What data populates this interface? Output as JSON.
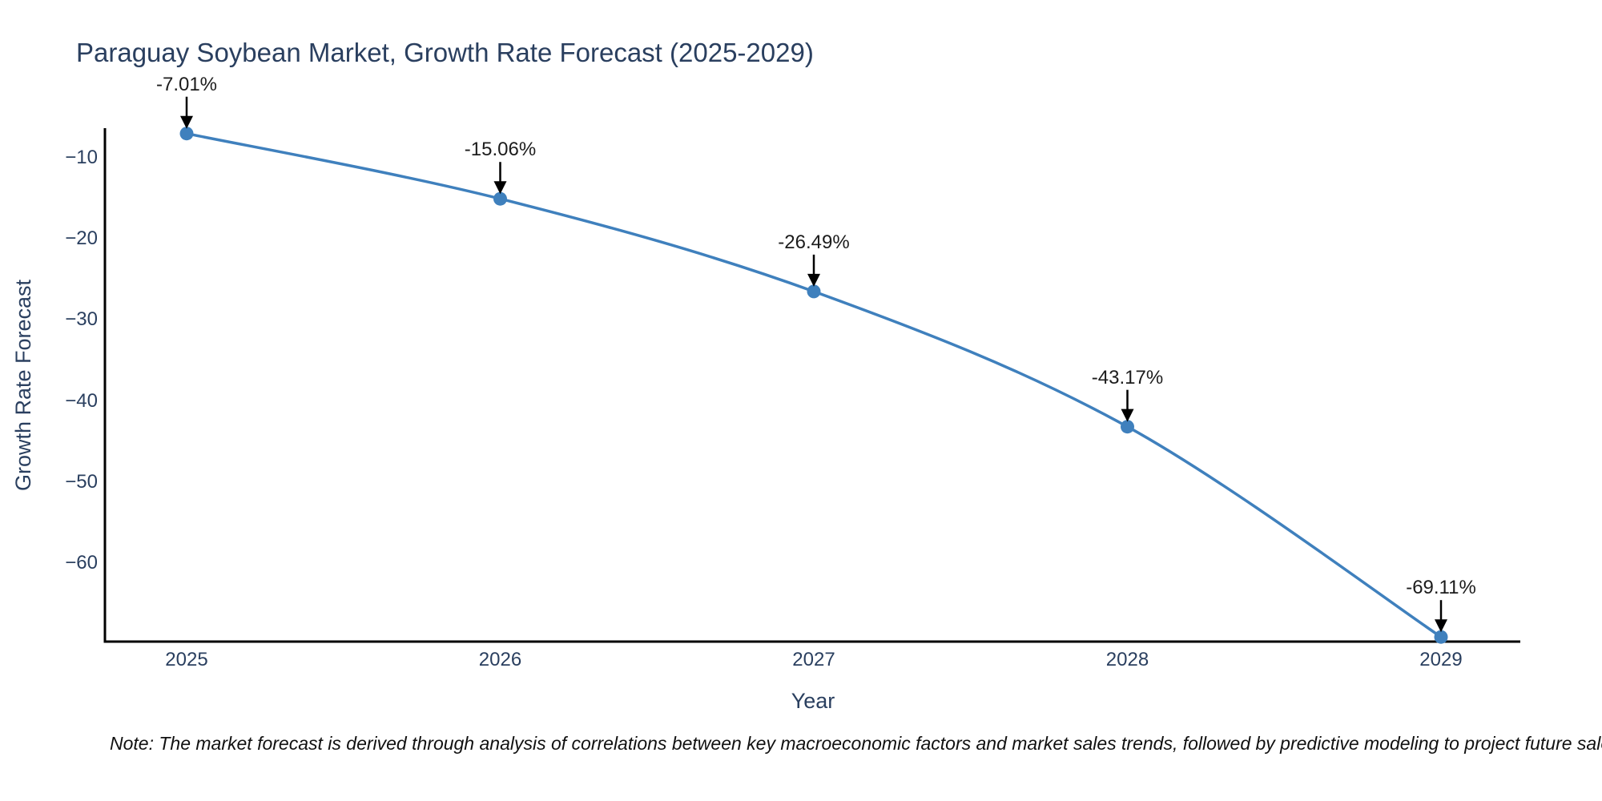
{
  "chart_data": {
    "type": "line",
    "title": "Paraguay Soybean Market, Growth Rate Forecast (2025-2029)",
    "xlabel": "Year",
    "ylabel": "Growth Rate Forecast",
    "categories": [
      2025,
      2026,
      2027,
      2028,
      2029
    ],
    "series": [
      {
        "name": "Growth Rate Forecast",
        "values": [
          -7.01,
          -15.06,
          -26.49,
          -43.17,
          -69.11
        ]
      }
    ],
    "point_labels": [
      "-7.01%",
      "-15.06%",
      "-26.49%",
      "-43.17%",
      "-69.11%"
    ],
    "x_tick_labels": [
      "2025",
      "2026",
      "2027",
      "2028",
      "2029"
    ],
    "y_ticks": [
      {
        "label": "−10",
        "value": -10
      },
      {
        "label": "−20",
        "value": -20
      },
      {
        "label": "−30",
        "value": -30
      },
      {
        "label": "−40",
        "value": -40
      },
      {
        "label": "−50",
        "value": -50
      },
      {
        "label": "−60",
        "value": -60
      }
    ],
    "xlim": [
      2024.74,
      2029.26
    ],
    "ylim": [
      -69.8,
      -6.3
    ],
    "grid": false,
    "legend_position": "none",
    "line_shape": "spline",
    "marker": "circle",
    "annotation_arrows": true,
    "colors": {
      "line": "#3f80bd",
      "marker": "#3f80bd",
      "axis": "#000000",
      "tick_label": "#2a3f5f",
      "title": "#2a3f5f",
      "annotation": "#1c1c1c",
      "arrow": "#000000",
      "note": "#111111",
      "background": "#ffffff"
    },
    "note": "Note: The market forecast is derived through analysis of correlations between key macroeconomic factors and market sales trends, followed by predictive modeling to project future sales"
  }
}
